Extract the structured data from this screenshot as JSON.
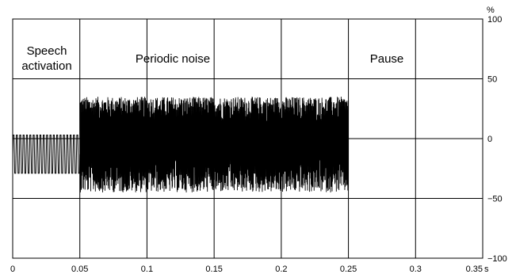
{
  "chart_data": {
    "type": "line",
    "title": "",
    "xlabel": "",
    "ylabel": "",
    "x_unit": "s",
    "y_unit": "%",
    "xlim": [
      0,
      0.35
    ],
    "ylim": [
      -100,
      100
    ],
    "x_ticks": [
      0,
      0.05,
      0.1,
      0.15,
      0.2,
      0.25,
      0.3,
      0.35
    ],
    "x_tick_labels": [
      "0",
      "0.05",
      "0.1",
      "0.15",
      "0.2",
      "0.25",
      "0.3",
      "0.35"
    ],
    "y_ticks": [
      100,
      50,
      0,
      -50,
      -100
    ],
    "y_tick_labels": [
      "100",
      "50",
      "0",
      "−50",
      "−100"
    ],
    "grid": true,
    "line_color": "#000000",
    "regions": [
      {
        "name": "Speech activation",
        "x_start": 0,
        "x_end": 0.05,
        "label_lines": [
          "Speech",
          "activation"
        ],
        "signal": "periodic square-like wave",
        "amplitude": 16,
        "offset": -13,
        "period": 0.0025
      },
      {
        "name": "Periodic noise",
        "x_start": 0.05,
        "x_end": 0.25,
        "label_lines": [
          "Periodic noise"
        ],
        "signal": "dense noise",
        "upper_envelope": 35,
        "lower_envelope": -45
      },
      {
        "name": "Pause",
        "x_start": 0.25,
        "x_end": 0.35,
        "label_lines": [
          "Pause"
        ],
        "signal": "flat",
        "level": 0
      }
    ]
  }
}
